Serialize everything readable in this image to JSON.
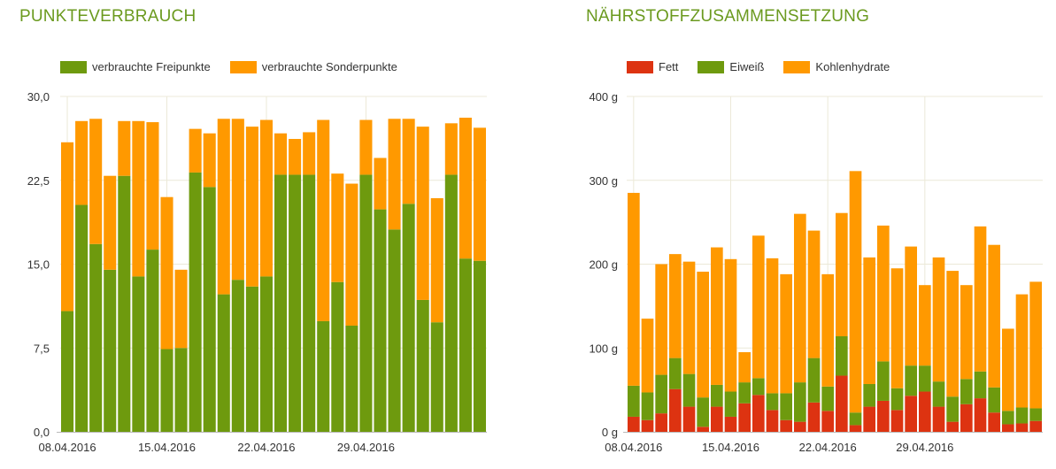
{
  "colors": {
    "freipunkte": "#6e9a0e",
    "sonderpunkte": "#ff9900",
    "fett": "#dd3311",
    "eiweiss": "#6e9a0e",
    "kohlenhydrate": "#ff9900",
    "title": "#6b9a1f",
    "grid": "#ece9d8"
  },
  "chart_data": [
    {
      "type": "bar",
      "stacked": true,
      "title": "PUNKTEVERBRAUCH",
      "ylim": [
        0,
        30
      ],
      "yticks": [
        "0,0",
        "7,5",
        "15,0",
        "22,5",
        "30,0"
      ],
      "xtick_labels": [
        "08.04.2016",
        "15.04.2016",
        "22.04.2016",
        "29.04.2016"
      ],
      "xtick_index": [
        0,
        7,
        14,
        21
      ],
      "legend_position": "top-left",
      "grid": true,
      "series": [
        {
          "name": "verbrauchte Freipunkte",
          "values": [
            10.8,
            20.3,
            16.8,
            14.5,
            22.9,
            13.9,
            16.3,
            7.4,
            7.5,
            23.2,
            21.9,
            12.3,
            13.6,
            13.0,
            13.9,
            23.0,
            23.0,
            23.0,
            9.9,
            13.4,
            9.5,
            23.0,
            19.9,
            18.1,
            20.4,
            11.8,
            9.8,
            23.0,
            15.5,
            15.3
          ]
        },
        {
          "name": "verbrauchte Sonderpunkte",
          "values": [
            15.1,
            7.5,
            11.2,
            8.4,
            4.9,
            13.9,
            11.4,
            13.6,
            7.0,
            3.9,
            4.8,
            15.7,
            14.4,
            14.3,
            14.0,
            3.7,
            3.2,
            3.8,
            18.0,
            9.7,
            12.7,
            4.9,
            4.6,
            9.9,
            7.6,
            15.5,
            11.1,
            4.6,
            12.6,
            11.9
          ]
        }
      ]
    },
    {
      "type": "bar",
      "stacked": true,
      "title": "NÄHRSTOFFZUSAMMENSETZUNG",
      "ylim": [
        0,
        400
      ],
      "yticks": [
        "0 g",
        "100 g",
        "200 g",
        "300 g",
        "400 g"
      ],
      "xtick_labels": [
        "08.04.2016",
        "15.04.2016",
        "22.04.2016",
        "29.04.2016"
      ],
      "xtick_index": [
        0,
        7,
        14,
        21
      ],
      "legend_position": "top-left",
      "grid": true,
      "series": [
        {
          "name": "Fett",
          "values": [
            18,
            14,
            22,
            51,
            30,
            6,
            30,
            18,
            34,
            44,
            26,
            14,
            12,
            35,
            25,
            67,
            8,
            30,
            37,
            26,
            43,
            48,
            30,
            12,
            33,
            40,
            23,
            9,
            10,
            13
          ]
        },
        {
          "name": "Eiweiß",
          "values": [
            37,
            33,
            46,
            37,
            39,
            35,
            26,
            30,
            25,
            20,
            20,
            32,
            47,
            53,
            29,
            47,
            15,
            27,
            47,
            26,
            36,
            31,
            30,
            30,
            30,
            32,
            30,
            16,
            19,
            15
          ]
        },
        {
          "name": "Kohlenhydrate",
          "values": [
            230,
            88,
            132,
            124,
            134,
            150,
            164,
            158,
            36,
            170,
            161,
            142,
            201,
            152,
            134,
            147,
            288,
            151,
            162,
            143,
            142,
            96,
            148,
            150,
            112,
            173,
            170,
            98,
            135,
            151
          ]
        }
      ]
    }
  ]
}
